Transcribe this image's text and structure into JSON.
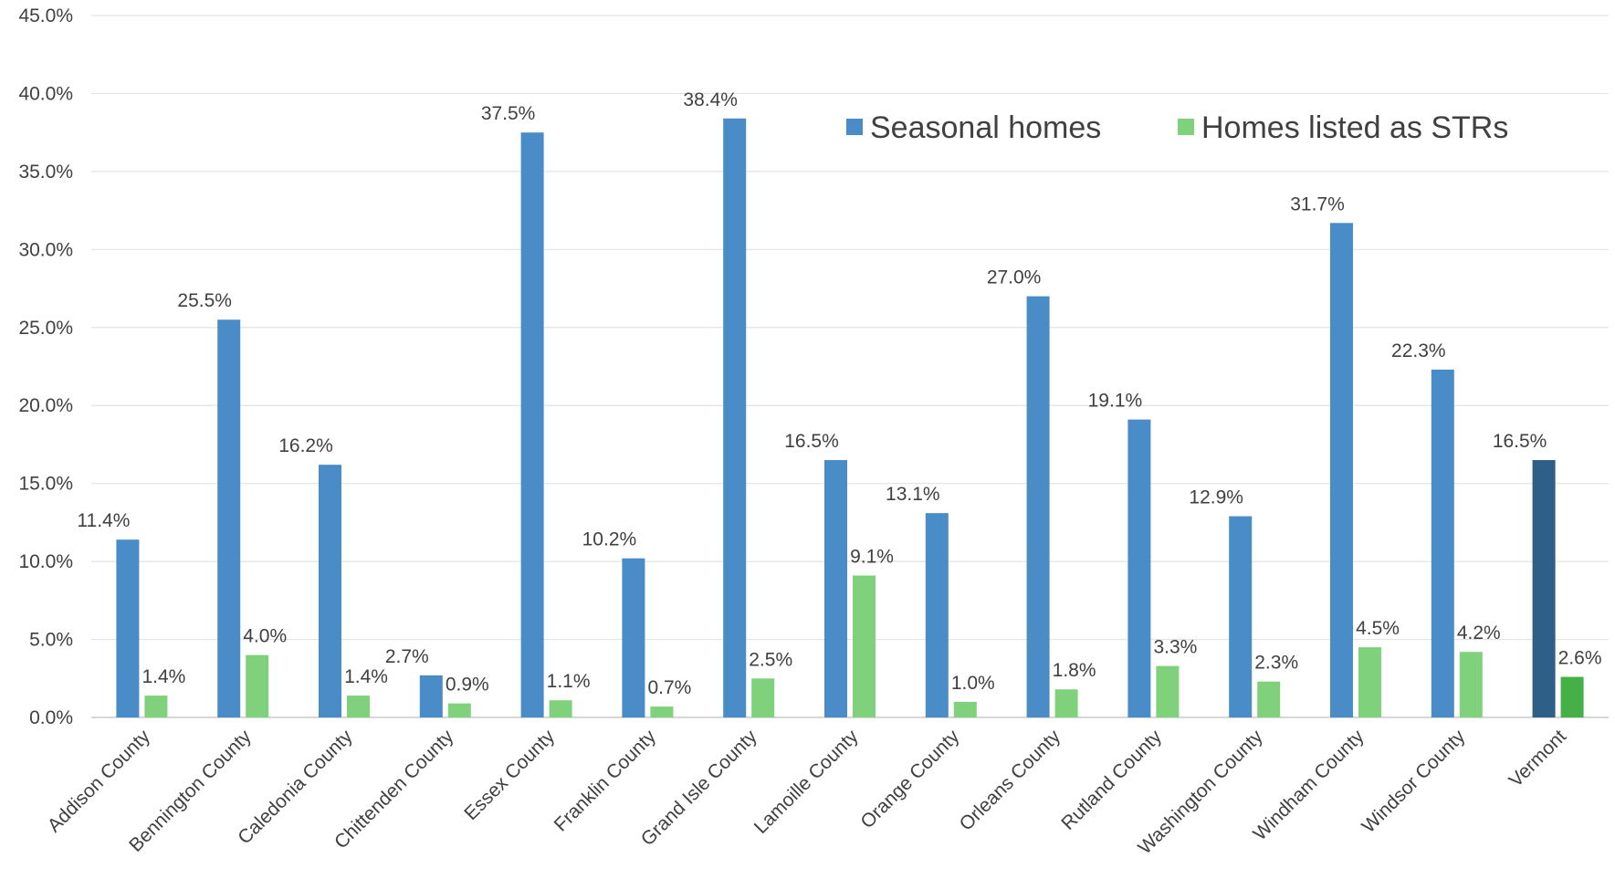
{
  "chart_data": {
    "type": "bar",
    "title": "",
    "xlabel": "",
    "ylabel": "",
    "ylim": [
      0,
      45
    ],
    "yticks": [
      "0.0%",
      "5.0%",
      "10.0%",
      "15.0%",
      "20.0%",
      "25.0%",
      "30.0%",
      "35.0%",
      "40.0%",
      "45.0%"
    ],
    "grid": true,
    "legend_position": "top-right",
    "categories": [
      "Addison County",
      "Bennington County",
      "Caledonia County",
      "Chittenden County",
      "Essex County",
      "Franklin County",
      "Grand Isle County",
      "Lamoille County",
      "Orange County",
      "Orleans County",
      "Rutland County",
      "Washington County",
      "Windham County",
      "Windsor County",
      "Vermont"
    ],
    "series": [
      {
        "name": "Seasonal homes",
        "color": "#4a8cc7",
        "highlight_color": "#2e5f87",
        "values": [
          11.4,
          25.5,
          16.2,
          2.7,
          37.5,
          10.2,
          38.4,
          16.5,
          13.1,
          27.0,
          19.1,
          12.9,
          31.7,
          22.3,
          16.5
        ],
        "labels": [
          "11.4%",
          "25.5%",
          "16.2%",
          "2.7%",
          "37.5%",
          "10.2%",
          "38.4%",
          "16.5%",
          "13.1%",
          "27.0%",
          "19.1%",
          "12.9%",
          "31.7%",
          "22.3%",
          "16.5%"
        ]
      },
      {
        "name": "Homes listed as STRs",
        "color": "#7fd27b",
        "highlight_color": "#44b045",
        "values": [
          1.4,
          4.0,
          1.4,
          0.9,
          1.1,
          0.7,
          2.5,
          9.1,
          1.0,
          1.8,
          3.3,
          2.3,
          4.5,
          4.2,
          2.6
        ],
        "labels": [
          "1.4%",
          "4.0%",
          "1.4%",
          "0.9%",
          "1.1%",
          "0.7%",
          "2.5%",
          "9.1%",
          "1.0%",
          "1.8%",
          "3.3%",
          "2.3%",
          "4.5%",
          "4.2%",
          "2.6%"
        ]
      }
    ],
    "highlighted_category": "Vermont"
  }
}
